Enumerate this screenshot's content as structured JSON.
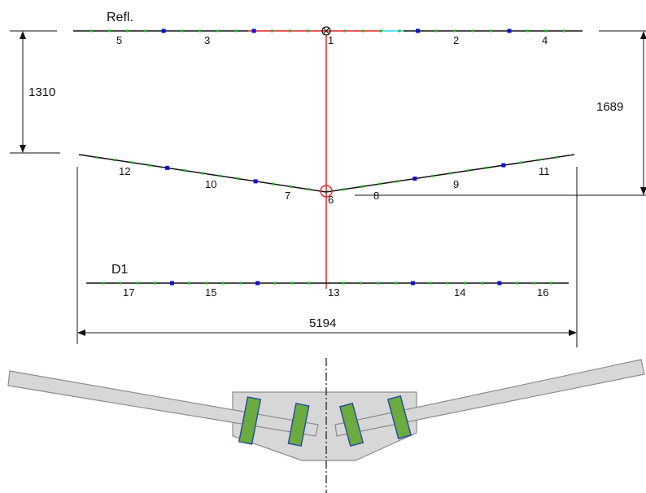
{
  "labels": {
    "reflector": "Refl.",
    "driven": "D1"
  },
  "dimensions": {
    "reflector_to_vertex": "1310",
    "vertex_to_reflector_right": "1689",
    "total_width": "5194"
  },
  "nodes": {
    "n1": "1",
    "n2": "2",
    "n3": "3",
    "n4": "4",
    "n5": "5",
    "n6": "6",
    "n7": "7",
    "n8": "8",
    "n9": "9",
    "n10": "10",
    "n11": "11",
    "n12": "12",
    "n13": "13",
    "n14": "14",
    "n15": "15",
    "n16": "16",
    "n17": "17"
  },
  "colors": {
    "element": "#111111",
    "boom": "#e32222",
    "highlight": "#2ad6e8",
    "segment_marker": "#1010d0",
    "point_marker": "#22bb22",
    "bracket_fill": "#d7d7d7",
    "bracket_stroke": "#8c8c8c",
    "clamp_fill": "#6cab3f",
    "clamp_stroke": "#2a4fa0"
  }
}
